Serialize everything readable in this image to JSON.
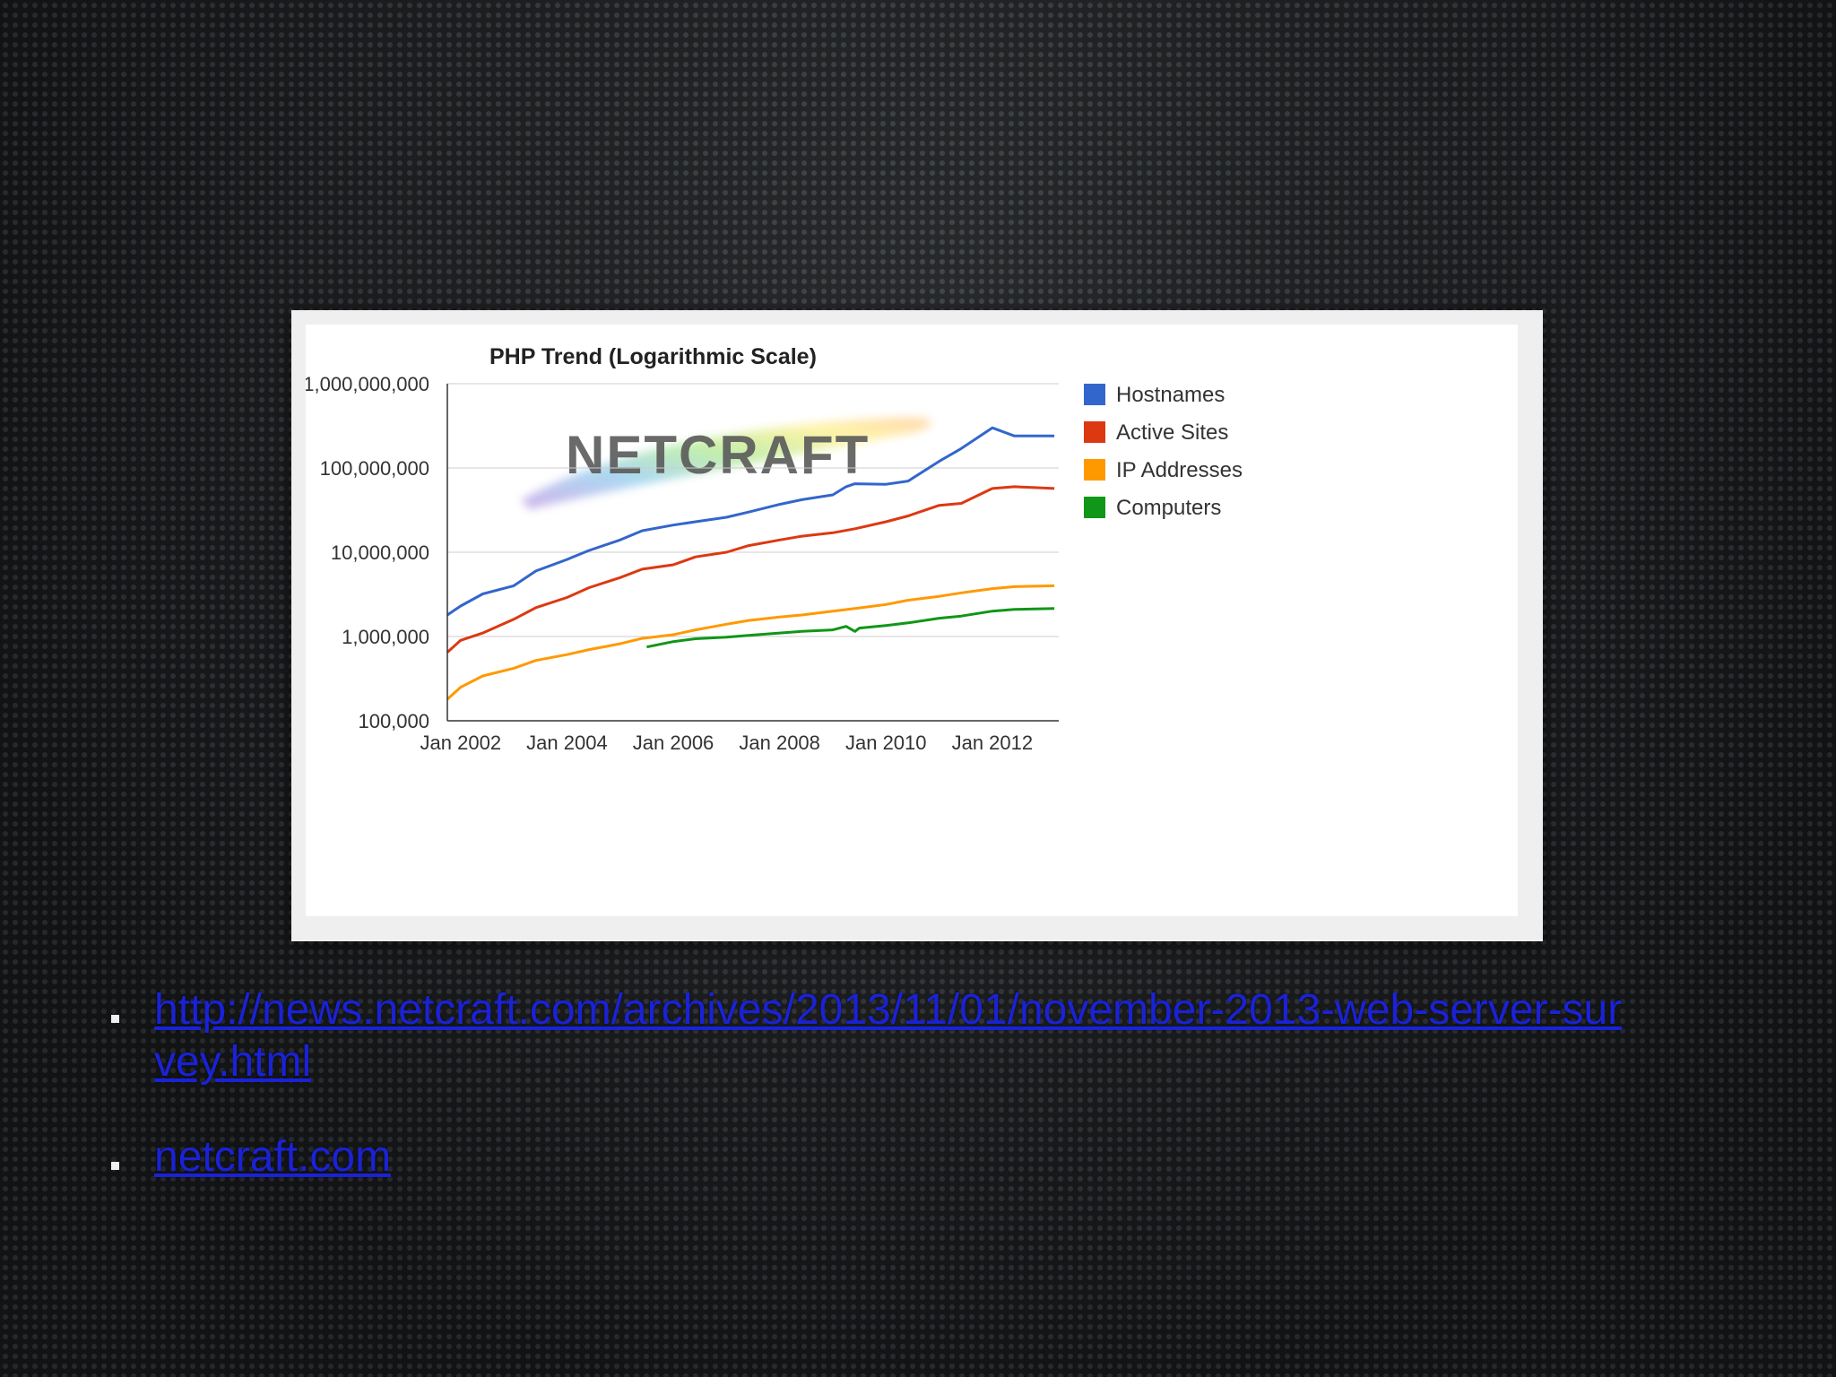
{
  "chart_data": {
    "type": "line",
    "title": "PHP Trend (Logarithmic Scale)",
    "y_scale": "log",
    "ylim": [
      100000,
      1000000000
    ],
    "xlim": [
      "2001-10",
      "2013-04"
    ],
    "yticks": [
      "1,000,000,000",
      "100,000,000",
      "10,000,000",
      "1,000,000",
      "100,000"
    ],
    "xticks": [
      {
        "label": "Jan 2002",
        "value": "2002-01"
      },
      {
        "label": "Jan 2004",
        "value": "2004-01"
      },
      {
        "label": "Jan 2006",
        "value": "2006-01"
      },
      {
        "label": "Jan 2008",
        "value": "2008-01"
      },
      {
        "label": "Jan 2010",
        "value": "2010-01"
      },
      {
        "label": "Jan 2012",
        "value": "2012-01"
      }
    ],
    "grid": true,
    "legend_position": "right",
    "series": [
      {
        "name": "Hostnames",
        "color": "#3366cc",
        "points": [
          [
            "2001-10",
            1800000
          ],
          [
            "2002-01",
            2300000
          ],
          [
            "2002-06",
            3200000
          ],
          [
            "2003-01",
            4000000
          ],
          [
            "2003-06",
            6000000
          ],
          [
            "2004-01",
            8200000
          ],
          [
            "2004-06",
            10500000
          ],
          [
            "2005-01",
            14000000
          ],
          [
            "2005-06",
            18000000
          ],
          [
            "2006-01",
            21000000
          ],
          [
            "2006-06",
            23000000
          ],
          [
            "2007-01",
            26000000
          ],
          [
            "2007-06",
            30000000
          ],
          [
            "2008-01",
            37000000
          ],
          [
            "2008-06",
            42000000
          ],
          [
            "2009-01",
            48000000
          ],
          [
            "2009-04",
            60000000
          ],
          [
            "2009-06",
            65000000
          ],
          [
            "2010-01",
            64000000
          ],
          [
            "2010-06",
            70000000
          ],
          [
            "2011-01",
            120000000
          ],
          [
            "2011-06",
            170000000
          ],
          [
            "2012-01",
            300000000
          ],
          [
            "2012-06",
            240000000
          ],
          [
            "2013-03",
            240000000
          ]
        ]
      },
      {
        "name": "Active Sites",
        "color": "#dc3912",
        "points": [
          [
            "2001-10",
            650000
          ],
          [
            "2002-01",
            900000
          ],
          [
            "2002-06",
            1100000
          ],
          [
            "2003-01",
            1600000
          ],
          [
            "2003-06",
            2200000
          ],
          [
            "2004-01",
            2900000
          ],
          [
            "2004-06",
            3800000
          ],
          [
            "2005-01",
            5000000
          ],
          [
            "2005-06",
            6300000
          ],
          [
            "2006-01",
            7100000
          ],
          [
            "2006-06",
            8800000
          ],
          [
            "2007-01",
            10000000
          ],
          [
            "2007-06",
            12000000
          ],
          [
            "2008-01",
            14000000
          ],
          [
            "2008-06",
            15500000
          ],
          [
            "2009-01",
            17000000
          ],
          [
            "2009-06",
            19000000
          ],
          [
            "2010-01",
            23000000
          ],
          [
            "2010-06",
            27000000
          ],
          [
            "2011-01",
            36000000
          ],
          [
            "2011-06",
            38000000
          ],
          [
            "2012-01",
            57000000
          ],
          [
            "2012-06",
            60000000
          ],
          [
            "2013-03",
            57000000
          ]
        ]
      },
      {
        "name": "IP Addresses",
        "color": "#ff9900",
        "points": [
          [
            "2001-10",
            180000
          ],
          [
            "2002-01",
            250000
          ],
          [
            "2002-06",
            340000
          ],
          [
            "2003-01",
            420000
          ],
          [
            "2003-06",
            520000
          ],
          [
            "2004-01",
            610000
          ],
          [
            "2004-06",
            700000
          ],
          [
            "2005-01",
            820000
          ],
          [
            "2005-06",
            950000
          ],
          [
            "2006-01",
            1050000
          ],
          [
            "2006-06",
            1200000
          ],
          [
            "2007-01",
            1400000
          ],
          [
            "2007-06",
            1550000
          ],
          [
            "2008-01",
            1700000
          ],
          [
            "2008-06",
            1800000
          ],
          [
            "2009-01",
            2000000
          ],
          [
            "2009-06",
            2150000
          ],
          [
            "2010-01",
            2400000
          ],
          [
            "2010-06",
            2700000
          ],
          [
            "2011-01",
            3000000
          ],
          [
            "2011-06",
            3300000
          ],
          [
            "2012-01",
            3700000
          ],
          [
            "2012-06",
            3900000
          ],
          [
            "2013-03",
            4000000
          ]
        ]
      },
      {
        "name": "Computers",
        "color": "#109618",
        "points": [
          [
            "2005-07",
            750000
          ],
          [
            "2006-01",
            870000
          ],
          [
            "2006-06",
            940000
          ],
          [
            "2007-01",
            980000
          ],
          [
            "2007-06",
            1030000
          ],
          [
            "2008-01",
            1100000
          ],
          [
            "2008-06",
            1150000
          ],
          [
            "2009-01",
            1200000
          ],
          [
            "2009-04",
            1320000
          ],
          [
            "2009-06",
            1150000
          ],
          [
            "2009-07",
            1260000
          ],
          [
            "2010-01",
            1350000
          ],
          [
            "2010-06",
            1450000
          ],
          [
            "2011-01",
            1650000
          ],
          [
            "2011-06",
            1750000
          ],
          [
            "2012-01",
            2000000
          ],
          [
            "2012-06",
            2100000
          ],
          [
            "2013-03",
            2150000
          ]
        ]
      }
    ]
  },
  "watermark": {
    "text": "NETCRAFT"
  },
  "links": [
    {
      "text": "http://news.netcraft.com/archives/2013/11/01/november-2013-web-server-survey.html"
    },
    {
      "text": "netcraft.com"
    }
  ],
  "colors": {
    "link": "#1a22d6",
    "background": "#1b1d20"
  }
}
